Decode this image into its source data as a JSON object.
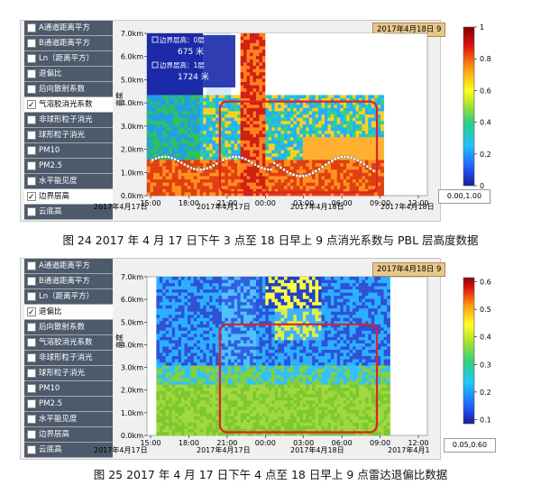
{
  "figure1": {
    "sidebar": [
      {
        "label": "A通道距离平方",
        "checked": false
      },
      {
        "label": "B通道距离平方",
        "checked": false
      },
      {
        "label": "Ln（距离平方）",
        "checked": false
      },
      {
        "label": "退偏比",
        "checked": false
      },
      {
        "label": "后向散射系数",
        "checked": false
      },
      {
        "label": "气溶胶消光系数",
        "checked": true
      },
      {
        "label": "非球形粒子消光",
        "checked": false
      },
      {
        "label": "球形粒子消光",
        "checked": false
      },
      {
        "label": "PM10",
        "checked": false
      },
      {
        "label": "PM2.5",
        "checked": false
      },
      {
        "label": "水平能见度",
        "checked": false
      },
      {
        "label": "边界层高",
        "checked": true
      },
      {
        "label": "云底高",
        "checked": false
      }
    ],
    "date_tab": "2017年4月18日 9",
    "legend": {
      "layer0": "边界层高：0层",
      "layer0_value": "675 米",
      "layer1": "边界层高：1层",
      "layer1_value": "1724 米"
    },
    "range_box": "0.00,1.00",
    "date_left": "2017年4月17日",
    "date_mid1": "2017年4月17日",
    "date_mid2": "2017年4月18日",
    "date_right": "2017年4月18日",
    "caption": "图 24    2017 年 4 月 17 日下午 3 点至 18 日早上 9 点消光系数与 PBL 层高度数据",
    "chart_data": {
      "type": "heatmap",
      "title": "",
      "ylabel": "高度",
      "y_ticks": [
        "0.0km",
        "1.0km",
        "2.0km",
        "3.0km",
        "4.0km",
        "5.0km",
        "6.0km",
        "7.0km"
      ],
      "x_ticks": [
        "15:00",
        "18:00",
        "21:00",
        "00:00",
        "03:00",
        "06:00",
        "09:00",
        "12:00"
      ],
      "ylim": [
        0,
        7.0
      ],
      "colorbar_ticks": [
        "0",
        "0.2",
        "0.4",
        "0.6",
        "0.8",
        "1"
      ],
      "colorbar_range": [
        0,
        1
      ],
      "highlight_box_color": "#e0202a"
    }
  },
  "figure2": {
    "sidebar": [
      {
        "label": "A通道距离平方",
        "checked": false
      },
      {
        "label": "B通道距离平方",
        "checked": false
      },
      {
        "label": "Ln（距离平方）",
        "checked": false
      },
      {
        "label": "退偏比",
        "checked": true
      },
      {
        "label": "后向散射系数",
        "checked": false
      },
      {
        "label": "气溶胶消光系数",
        "checked": false
      },
      {
        "label": "非球形粒子消光",
        "checked": false
      },
      {
        "label": "球形粒子消光",
        "checked": false
      },
      {
        "label": "PM10",
        "checked": false
      },
      {
        "label": "PM2.5",
        "checked": false
      },
      {
        "label": "水平能见度",
        "checked": false
      },
      {
        "label": "边界层高",
        "checked": false
      },
      {
        "label": "云底高",
        "checked": false
      }
    ],
    "date_tab": "2017年4月18日 9",
    "range_box": "0.05,0.60",
    "date_left": "2017年4月17日",
    "date_mid1": "2017年4月17日",
    "date_mid2": "2017年4月18日",
    "date_right": "2017年4月1",
    "caption": "图 25    2017 年 4 月 17 日下午 4 点至 18 日早上 9 点雷达退偏比数据",
    "chart_data": {
      "type": "heatmap",
      "title": "",
      "ylabel": "高度",
      "y_ticks": [
        "0.0km",
        "1.0km",
        "2.0km",
        "3.0km",
        "4.0km",
        "5.0km",
        "6.0km",
        "7.0km"
      ],
      "x_ticks": [
        "15:00",
        "18:00",
        "21:00",
        "00:00",
        "03:00",
        "06:00",
        "09:00",
        "12:00"
      ],
      "ylim": [
        0,
        7.0
      ],
      "colorbar_ticks": [
        "0.1",
        "0.2",
        "0.3",
        "0.4",
        "0.5",
        "0.6"
      ],
      "colorbar_range": [
        0.05,
        0.6
      ],
      "highlight_box_color": "#e0202a"
    }
  }
}
